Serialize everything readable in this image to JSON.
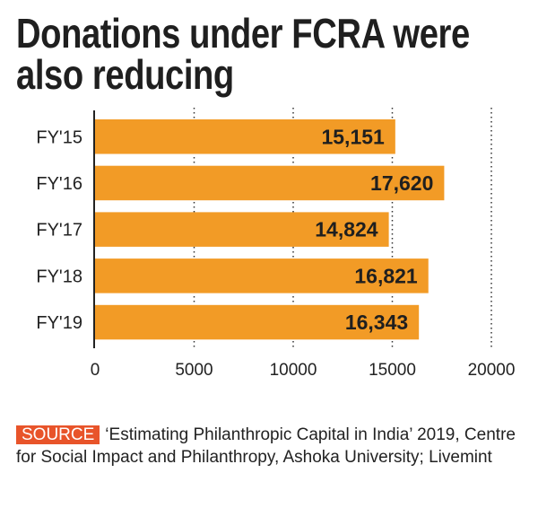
{
  "title_lines": [
    "Donations under FCRA were",
    "also reducing"
  ],
  "chart_data": {
    "type": "bar",
    "orientation": "horizontal",
    "categories": [
      "FY'15",
      "FY'16",
      "FY'17",
      "FY'18",
      "FY'19"
    ],
    "values": [
      15151,
      17620,
      14824,
      16821,
      16343
    ],
    "data_labels": [
      "15,151",
      "17,620",
      "14,824",
      "16,821",
      "16,343"
    ],
    "xlim": [
      0,
      20000
    ],
    "xticks": [
      0,
      5000,
      10000,
      15000,
      20000
    ],
    "xtick_labels": [
      "0",
      "5000",
      "10000",
      "15000",
      "20000"
    ],
    "grid": "vertical dotted",
    "bar_color": "#f29b26"
  },
  "source": {
    "badge": "SOURCE",
    "text": "‘Estimating Philanthropic Capital in India’ 2019, Centre for Social Impact and Philanthropy, Ashoka University; Livemint"
  }
}
